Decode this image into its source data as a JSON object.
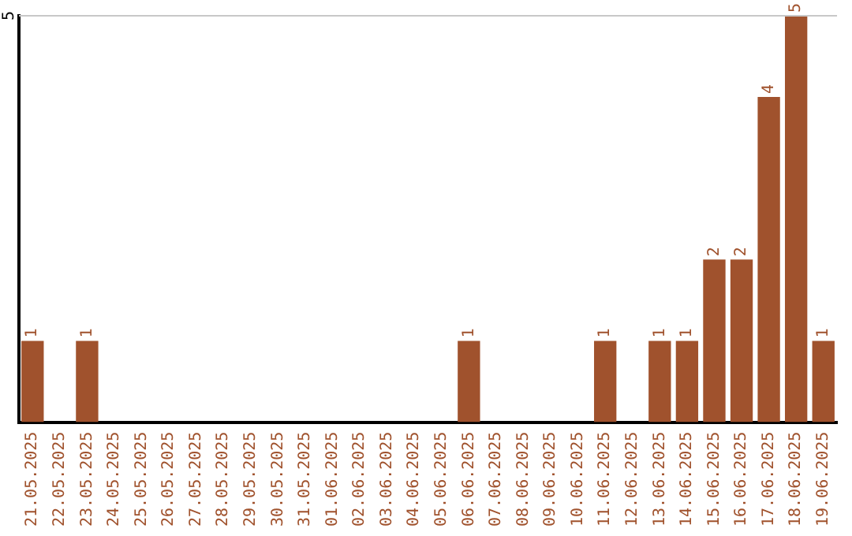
{
  "chart_data": {
    "type": "bar",
    "categories": [
      "21.05.2025",
      "22.05.2025",
      "23.05.2025",
      "24.05.2025",
      "25.05.2025",
      "26.05.2025",
      "27.05.2025",
      "28.05.2025",
      "29.05.2025",
      "30.05.2025",
      "31.05.2025",
      "01.06.2025",
      "02.06.2025",
      "03.06.2025",
      "04.06.2025",
      "05.06.2025",
      "06.06.2025",
      "07.06.2025",
      "08.06.2025",
      "09.06.2025",
      "10.06.2025",
      "11.06.2025",
      "12.06.2025",
      "13.06.2025",
      "14.06.2025",
      "15.06.2025",
      "16.06.2025",
      "17.06.2025",
      "18.06.2025",
      "19.06.2025"
    ],
    "values": [
      1,
      0,
      1,
      0,
      0,
      0,
      0,
      0,
      0,
      0,
      0,
      0,
      0,
      0,
      0,
      0,
      1,
      0,
      0,
      0,
      0,
      1,
      0,
      1,
      1,
      2,
      2,
      4,
      5,
      1
    ],
    "value_labels": [
      "1",
      null,
      "1",
      null,
      null,
      null,
      null,
      null,
      null,
      null,
      null,
      null,
      null,
      null,
      null,
      null,
      "1",
      null,
      null,
      null,
      null,
      "1",
      null,
      "1",
      "1",
      "2",
      "2",
      "4",
      "5",
      "1"
    ],
    "color": "#a0522d",
    "ref_lines": [
      {
        "axis": "y",
        "value": 5,
        "label": "5",
        "color": "#c8c8c8"
      }
    ],
    "legend": false
  }
}
